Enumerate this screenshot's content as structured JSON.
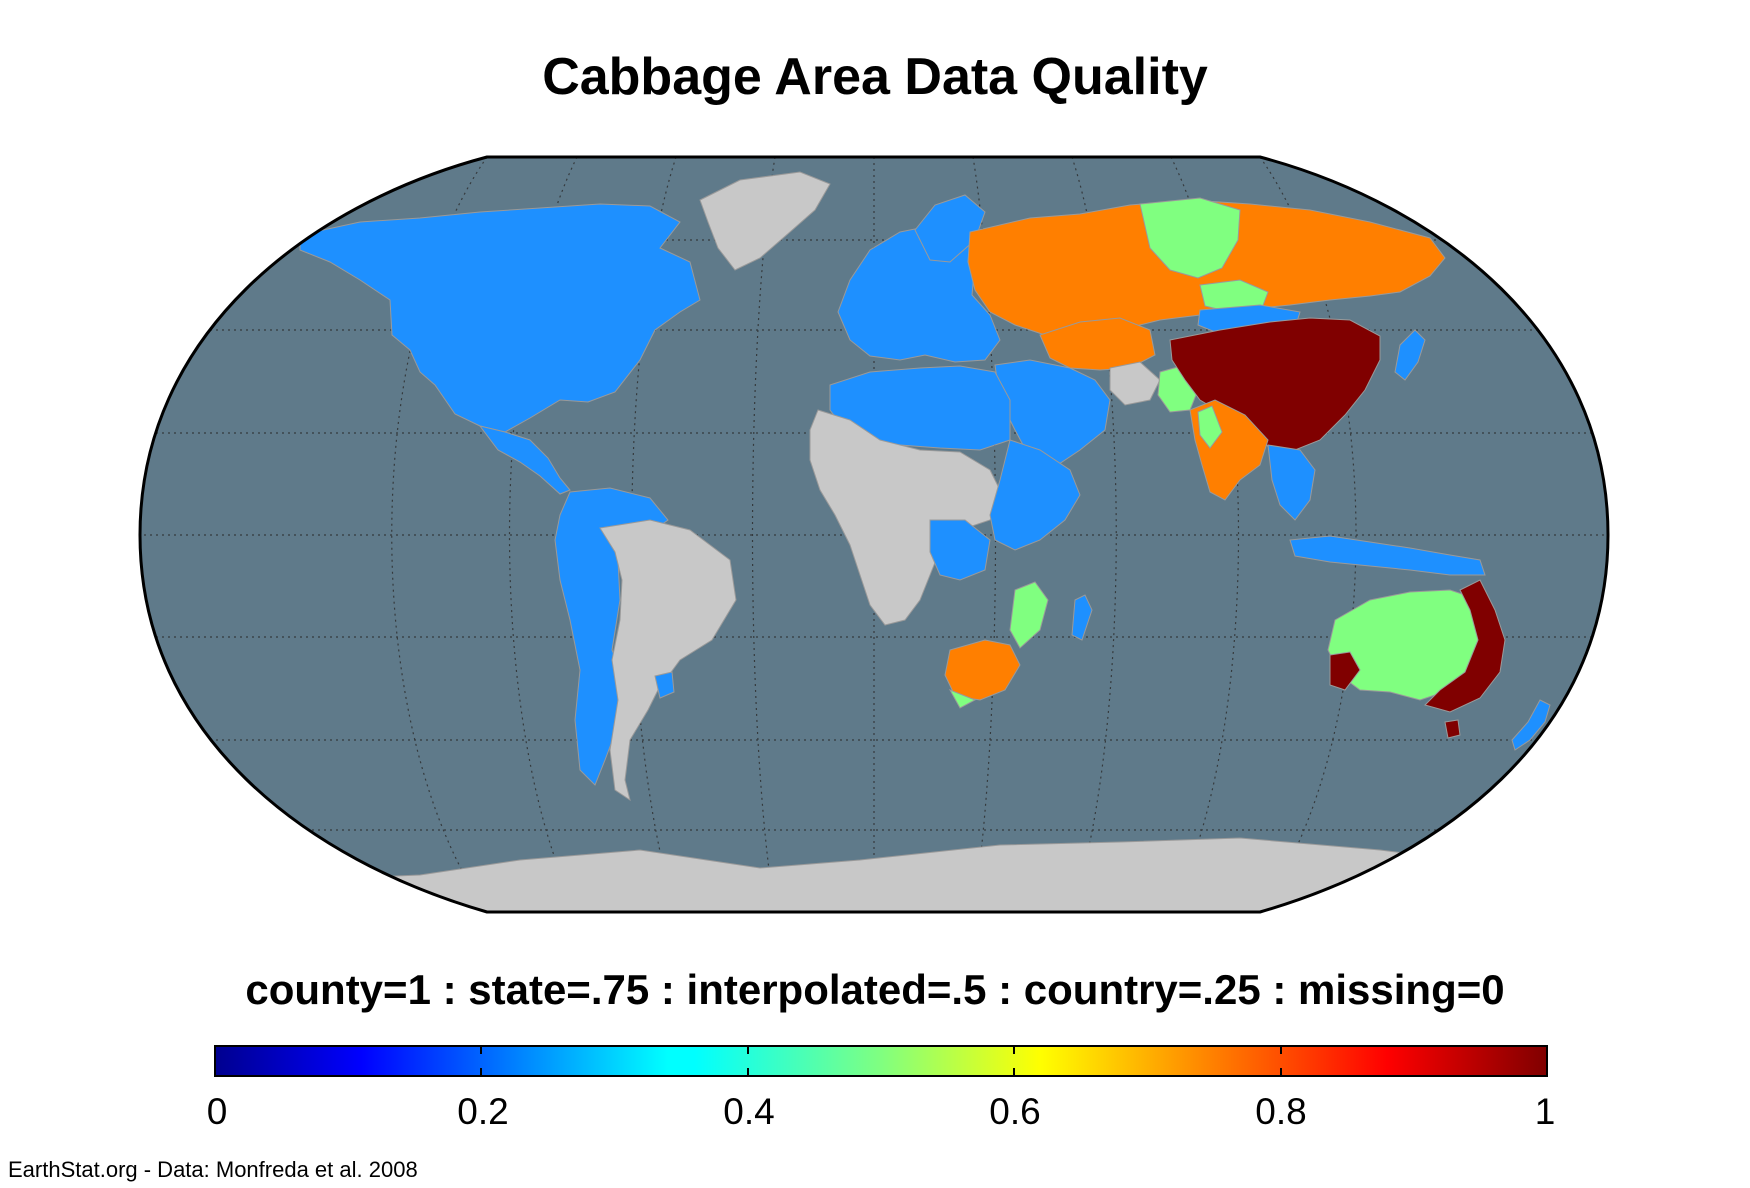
{
  "title": "Cabbage Area Data Quality",
  "legend": {
    "caption": "county=1 : state=.75 : interpolated=.5 : country=.25 : missing=0",
    "ticks": [
      "0",
      "0.2",
      "0.4",
      "0.6",
      "0.8",
      "1"
    ],
    "range": [
      0,
      1
    ],
    "colormap": "jet",
    "categories": [
      {
        "label": "county",
        "value": 1
      },
      {
        "label": "state",
        "value": 0.75
      },
      {
        "label": "interpolated",
        "value": 0.5
      },
      {
        "label": "country",
        "value": 0.25
      },
      {
        "label": "missing",
        "value": 0
      }
    ]
  },
  "credit": "EarthStat.org - Data: Monfreda et al. 2008",
  "colors": {
    "ocean": "#5f7a8a",
    "missing": "#c8c8c8",
    "country": "#1e90ff",
    "interpolated": "#80ff80",
    "state": "#ff7f00",
    "county": "#800000"
  },
  "map": {
    "projection": "Robinson",
    "graticule": "dotted",
    "regions": [
      {
        "name": "North America",
        "value": 0.25
      },
      {
        "name": "Central America",
        "value": 0.25
      },
      {
        "name": "Greenland",
        "value": 0
      },
      {
        "name": "South America west and north",
        "value": 0.25
      },
      {
        "name": "Brazil and southern cone",
        "value": 0
      },
      {
        "name": "Europe",
        "value": 0.25
      },
      {
        "name": "Russia",
        "value": 0.75
      },
      {
        "name": "Central Siberia",
        "value": 0.5
      },
      {
        "name": "Kazakhstan",
        "value": 0.75
      },
      {
        "name": "Mongolia",
        "value": 0.25
      },
      {
        "name": "China",
        "value": 1
      },
      {
        "name": "India",
        "value": 0.75
      },
      {
        "name": "Pakistan",
        "value": 0.5
      },
      {
        "name": "Middle East",
        "value": 0.25
      },
      {
        "name": "North Africa",
        "value": 0.25
      },
      {
        "name": "West and Central Africa",
        "value": 0
      },
      {
        "name": "East Africa",
        "value": 0.25
      },
      {
        "name": "Mozambique",
        "value": 0.5
      },
      {
        "name": "South Africa",
        "value": 0.75
      },
      {
        "name": "Southeast Asia",
        "value": 0.25
      },
      {
        "name": "Indonesia",
        "value": 0.25
      },
      {
        "name": "Japan",
        "value": 0.25
      },
      {
        "name": "Australia interior",
        "value": 0.5
      },
      {
        "name": "Australia east and southwest",
        "value": 1
      },
      {
        "name": "New Zealand",
        "value": 0.25
      },
      {
        "name": "Madagascar",
        "value": 0.25
      },
      {
        "name": "Antarctica",
        "value": 0
      }
    ]
  }
}
